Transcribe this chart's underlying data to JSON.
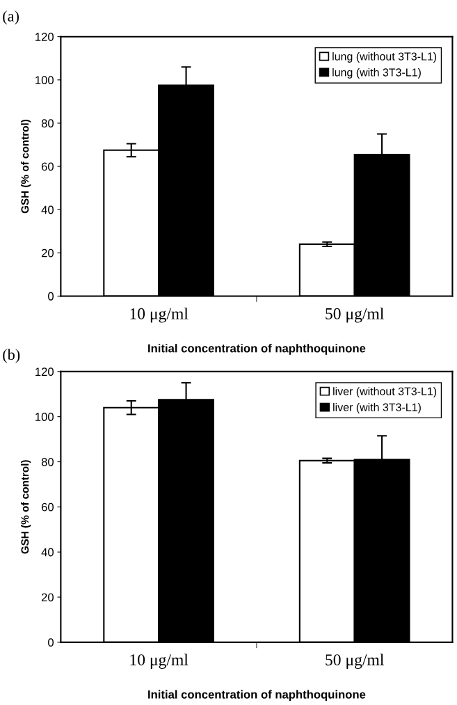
{
  "chart_data": [
    {
      "type": "bar",
      "title": "(a)",
      "xlabel": "Initial concentration of naphthoquinone",
      "ylabel": "GSH (% of control)",
      "categories": [
        "10 μg/ml",
        "50 μg/ml"
      ],
      "series": [
        {
          "name": "lung (without 3T3-L1)",
          "color": "#ffffff",
          "values": [
            67.5,
            24
          ],
          "errors": [
            3,
            1
          ]
        },
        {
          "name": "lung (with 3T3-L1)",
          "color": "#000000",
          "values": [
            97.5,
            65.5
          ],
          "errors": [
            8.5,
            9.5
          ]
        }
      ],
      "ylim": [
        0,
        120
      ],
      "yticks": [
        0,
        20,
        40,
        60,
        80,
        100,
        120
      ],
      "legend": "top right",
      "grid": false
    },
    {
      "type": "bar",
      "title": "(b)",
      "xlabel": "Initial concentration of naphthoquinone",
      "ylabel": "GSH (% of control)",
      "categories": [
        "10 μg/ml",
        "50 μg/ml"
      ],
      "series": [
        {
          "name": "liver (without 3T3-L1)",
          "color": "#ffffff",
          "values": [
            104,
            80.5
          ],
          "errors": [
            3,
            1
          ]
        },
        {
          "name": "liver (with 3T3-L1)",
          "color": "#000000",
          "values": [
            107.5,
            81
          ],
          "errors": [
            7.5,
            10.5
          ]
        }
      ],
      "ylim": [
        0,
        120
      ],
      "yticks": [
        0,
        20,
        40,
        60,
        80,
        100,
        120
      ],
      "legend": "top right",
      "grid": false
    }
  ]
}
